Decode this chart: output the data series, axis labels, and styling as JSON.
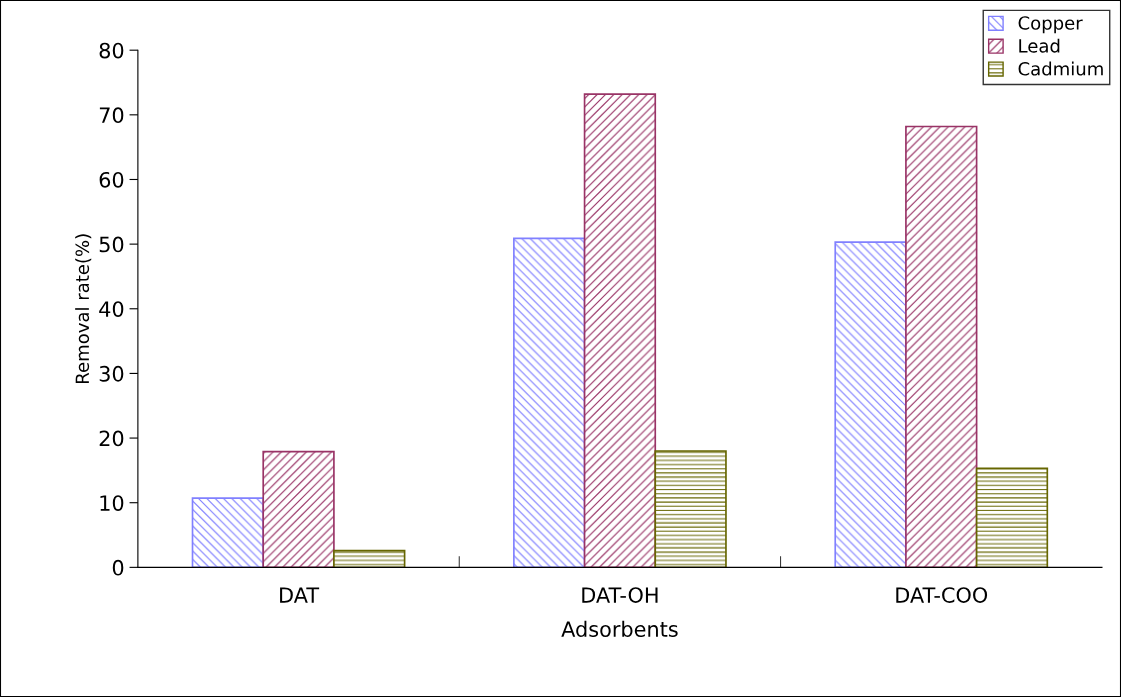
{
  "chart_data": {
    "type": "bar",
    "xlabel": "Adsorbents",
    "ylabel": "Removal rate(%)",
    "categories": [
      "DAT",
      "DAT-OH",
      "DAT-COO"
    ],
    "series": [
      {
        "name": "Copper",
        "color": "#8080ff",
        "values": [
          10.7,
          50.9,
          50.3
        ]
      },
      {
        "name": "Lead",
        "color": "#993366",
        "values": [
          17.9,
          73.2,
          68.2
        ]
      },
      {
        "name": "Cadmium",
        "color": "#666600",
        "values": [
          2.6,
          18,
          15.3
        ]
      }
    ],
    "ylim": [
      0,
      80
    ],
    "yticks": [
      0,
      10,
      20,
      30,
      40,
      50,
      60,
      70,
      80
    ],
    "grid": false,
    "legend": "top right"
  }
}
